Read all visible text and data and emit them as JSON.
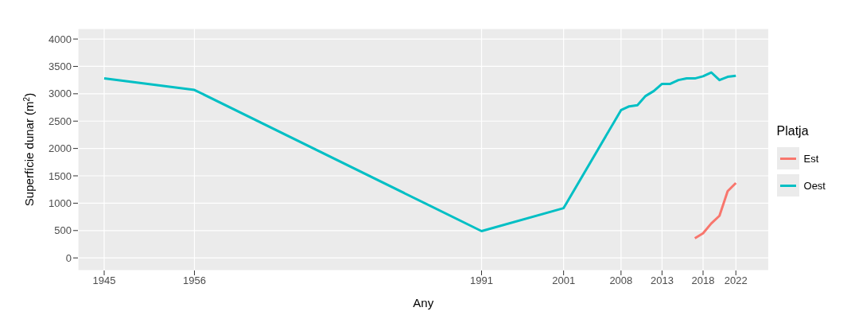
{
  "chart_data": {
    "type": "line",
    "xlabel": "Any",
    "ylabel": "Superfície dunar (m$^{2}$)",
    "legend_title": "Platja",
    "legend": "right",
    "grid": true,
    "marker": "none",
    "line_style": "solid",
    "xlim": [
      1941.8,
      2026
    ],
    "xticks": [
      1945,
      1956,
      1991,
      2001,
      2008,
      2013,
      2018,
      2022
    ],
    "ylim": [
      -230,
      4190
    ],
    "yticks": [
      0,
      500,
      1000,
      1500,
      2000,
      2500,
      3000,
      3500,
      4000
    ],
    "series": [
      {
        "name": "Est",
        "color": "#f8766d",
        "x": [
          2017,
          2018,
          2019,
          2020,
          2021,
          2022
        ],
        "values": [
          360,
          450,
          630,
          770,
          1220,
          1370
        ]
      },
      {
        "name": "Oest",
        "color": "#00bfc4",
        "x": [
          1945,
          1956,
          1991,
          2001,
          2008,
          2009,
          2010,
          2011,
          2012,
          2013,
          2014,
          2015,
          2016,
          2017,
          2018,
          2019,
          2020,
          2021,
          2022
        ],
        "values": [
          3280,
          3070,
          490,
          910,
          2700,
          2770,
          2790,
          2960,
          3050,
          3180,
          3180,
          3250,
          3280,
          3280,
          3320,
          3390,
          3250,
          3310,
          3330
        ]
      }
    ]
  }
}
